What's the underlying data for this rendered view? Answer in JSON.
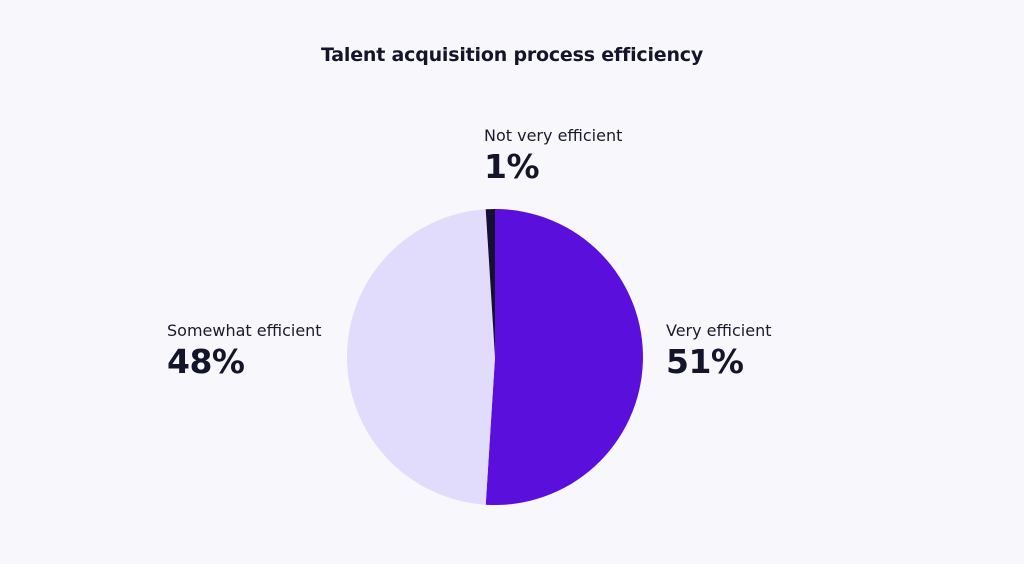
{
  "chart_data": {
    "type": "pie",
    "title": "Talent acquisition process efficiency",
    "slices": [
      {
        "label": "Very efficient",
        "value": 51,
        "value_label": "51%",
        "color": "#5b0fdd"
      },
      {
        "label": "Somewhat efficient",
        "value": 48,
        "value_label": "48%",
        "color": "#e1dcfb"
      },
      {
        "label": "Not very efficient",
        "value": 1,
        "value_label": "1%",
        "color": "#170f33"
      }
    ],
    "start_angle": "12 o'clock",
    "direction": "clockwise",
    "legend": "none"
  }
}
